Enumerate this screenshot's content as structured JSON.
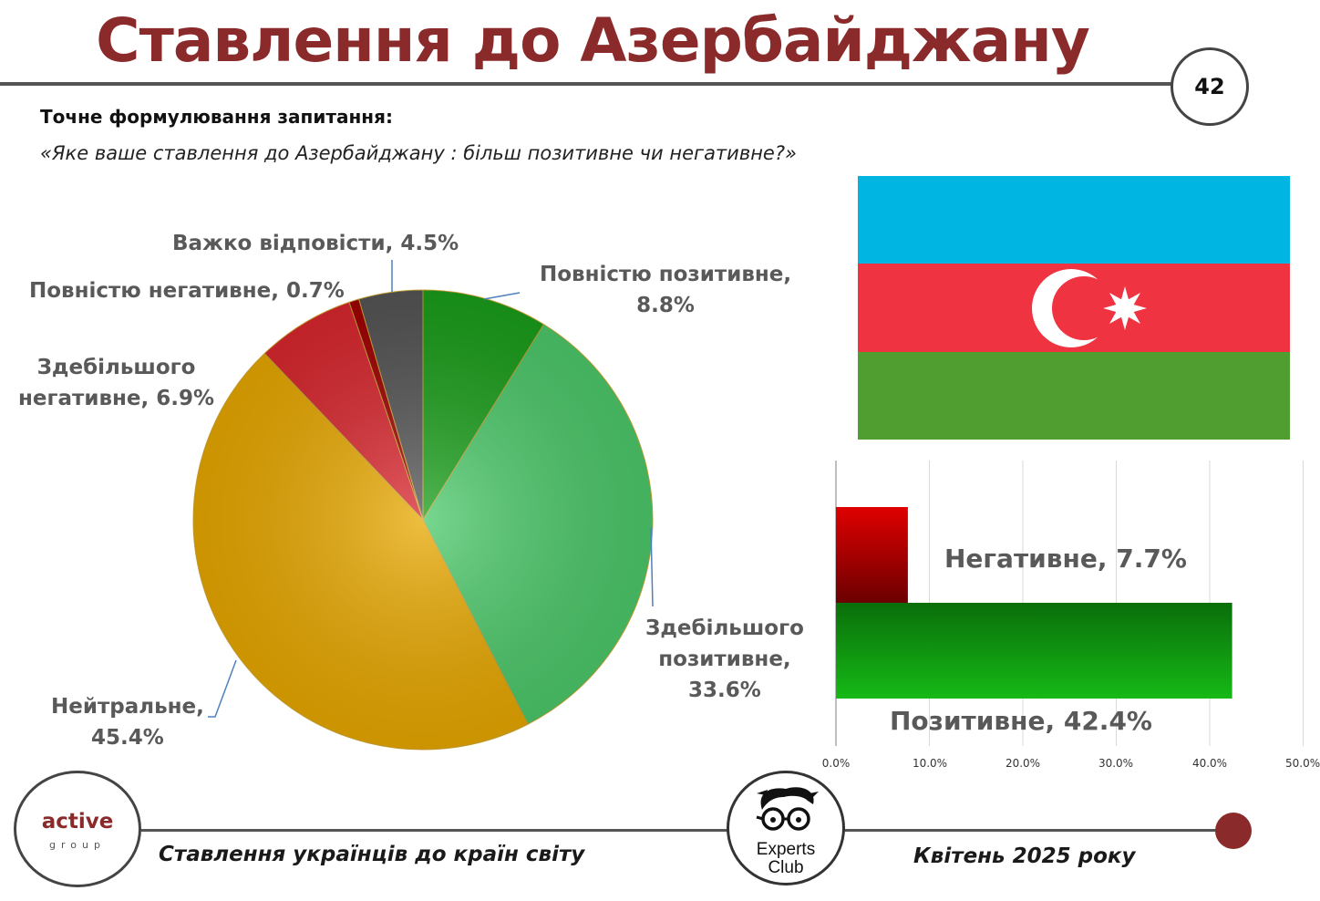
{
  "header": {
    "title": "Ставлення до Азербайджану",
    "page_number": "42"
  },
  "question": {
    "heading": "Точне формулювання запитання:",
    "text": "«Яке ваше ставлення до Азербайджану : більш позитивне чи негативне?»"
  },
  "chart_data": [
    {
      "type": "pie",
      "title": "",
      "start_angle_deg": 0,
      "direction": "clockwise",
      "slices": [
        {
          "label_lines": [
            "Повністю позитивне,",
            "8.8%"
          ],
          "value": 8.8,
          "color": "#1a9e1a"
        },
        {
          "label_lines": [
            "Здебільшого",
            "позитивне,",
            "33.6%"
          ],
          "value": 33.6,
          "color": "#4cc96a"
        },
        {
          "label_lines": [
            "Нейтральне,",
            "45.4%"
          ],
          "value": 45.4,
          "color": "#e8a800"
        },
        {
          "label_lines": [
            "Здебільшого",
            "негативне, 6.9%"
          ],
          "value": 6.9,
          "color": "#d9272e"
        },
        {
          "label_lines": [
            "Повністю негативне, 0.7%"
          ],
          "value": 0.7,
          "color": "#a00000"
        },
        {
          "label_lines": [
            "Важко відповісти, 4.5%"
          ],
          "value": 4.5,
          "color": "#555555"
        }
      ]
    },
    {
      "type": "bar",
      "orientation": "horizontal",
      "title": "",
      "xlim": [
        0,
        50
      ],
      "ticks": [
        "0.0%",
        "10.0%",
        "20.0%",
        "30.0%",
        "40.0%",
        "50.0%"
      ],
      "grid": true,
      "bars": [
        {
          "label": "Негативне, 7.7%",
          "value": 7.7,
          "color": "#c00000"
        },
        {
          "label": "Позитивне, 42.4%",
          "value": 42.4,
          "color": "#1aa51a"
        }
      ]
    }
  ],
  "flag": {
    "name": "Azerbaijan",
    "colors": {
      "blue": "#00b5e2",
      "red": "#ef3340",
      "green": "#509e2f",
      "emblem": "#ffffff"
    }
  },
  "footer": {
    "logo_left_word1": "active",
    "logo_left_word2": "group",
    "left_text": "Ставлення українців до країн світу",
    "logo_center_line1": "Experts",
    "logo_center_line2": "Club",
    "right_text": "Квітень 2025 року"
  }
}
